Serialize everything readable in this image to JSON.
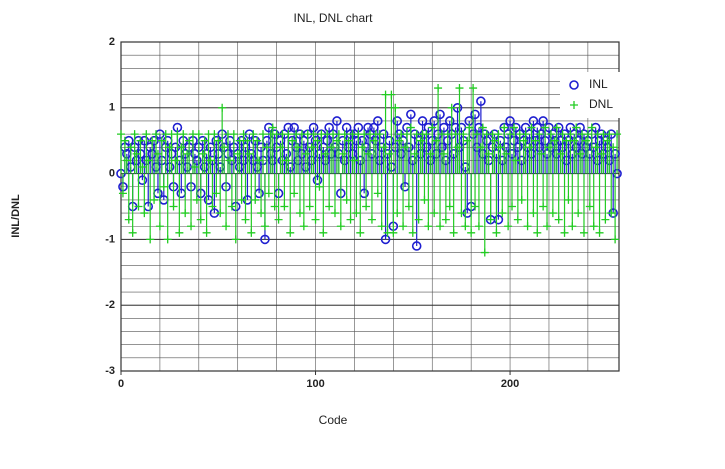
{
  "chart_data": {
    "type": "stem",
    "title": "INL, DNL chart",
    "xlabel": "Code",
    "ylabel": "INL/DNL",
    "xlim": [
      0,
      256
    ],
    "ylim": [
      -3,
      2
    ],
    "xticks": [
      0,
      100,
      200
    ],
    "yticks": [
      -3,
      -2,
      -1,
      0,
      1,
      2
    ],
    "x_grid_step": 20,
    "y_grid_step": 0.2,
    "grid": true,
    "legend": "upper right",
    "x": [
      0,
      1,
      2,
      3,
      4,
      5,
      6,
      7,
      8,
      9,
      10,
      11,
      12,
      13,
      14,
      15,
      16,
      17,
      18,
      19,
      20,
      21,
      22,
      23,
      24,
      25,
      26,
      27,
      28,
      29,
      30,
      31,
      32,
      33,
      34,
      35,
      36,
      37,
      38,
      39,
      40,
      41,
      42,
      43,
      44,
      45,
      46,
      47,
      48,
      49,
      50,
      51,
      52,
      53,
      54,
      55,
      56,
      57,
      58,
      59,
      60,
      61,
      62,
      63,
      64,
      65,
      66,
      67,
      68,
      69,
      70,
      71,
      72,
      73,
      74,
      75,
      76,
      77,
      78,
      79,
      80,
      81,
      82,
      83,
      84,
      85,
      86,
      87,
      88,
      89,
      90,
      91,
      92,
      93,
      94,
      95,
      96,
      97,
      98,
      99,
      100,
      101,
      102,
      103,
      104,
      105,
      106,
      107,
      108,
      109,
      110,
      111,
      112,
      113,
      114,
      115,
      116,
      117,
      118,
      119,
      120,
      121,
      122,
      123,
      124,
      125,
      126,
      127,
      128,
      129,
      130,
      131,
      132,
      133,
      134,
      135,
      136,
      137,
      138,
      139,
      140,
      141,
      142,
      143,
      144,
      145,
      146,
      147,
      148,
      149,
      150,
      151,
      152,
      153,
      154,
      155,
      156,
      157,
      158,
      159,
      160,
      161,
      162,
      163,
      164,
      165,
      166,
      167,
      168,
      169,
      170,
      171,
      172,
      173,
      174,
      175,
      176,
      177,
      178,
      179,
      180,
      181,
      182,
      183,
      184,
      185,
      186,
      187,
      188,
      189,
      190,
      191,
      192,
      193,
      194,
      195,
      196,
      197,
      198,
      199,
      200,
      201,
      202,
      203,
      204,
      205,
      206,
      207,
      208,
      209,
      210,
      211,
      212,
      213,
      214,
      215,
      216,
      217,
      218,
      219,
      220,
      221,
      222,
      223,
      224,
      225,
      226,
      227,
      228,
      229,
      230,
      231,
      232,
      233,
      234,
      235,
      236,
      237,
      238,
      239,
      240,
      241,
      242,
      243,
      244,
      245,
      246,
      247,
      248,
      249,
      250,
      251,
      252,
      253,
      254,
      255
    ],
    "series": [
      {
        "name": "INL",
        "color": "#1f1fd0",
        "marker": "circle",
        "values": [
          0,
          -0.2,
          0.4,
          0.3,
          0.5,
          0.1,
          -0.5,
          0.4,
          0.2,
          0.5,
          0.3,
          -0.1,
          0.5,
          0.2,
          -0.5,
          0.4,
          0.3,
          0.5,
          0.1,
          -0.3,
          0.6,
          0.2,
          -0.4,
          0.4,
          0.5,
          0.1,
          0.3,
          -0.2,
          0.4,
          0.7,
          0.2,
          -0.3,
          0.5,
          0.3,
          0.1,
          0.4,
          -0.2,
          0.5,
          0.3,
          0.2,
          0.4,
          -0.3,
          0.5,
          0.1,
          0.3,
          -0.4,
          0.4,
          0.2,
          -0.6,
          0.5,
          0.3,
          0.1,
          0.6,
          0.4,
          -0.2,
          0.3,
          0.5,
          0.2,
          0.4,
          -0.5,
          0.3,
          0.1,
          0.5,
          0.2,
          0.4,
          -0.4,
          0.6,
          0.3,
          0.2,
          0.5,
          0.1,
          -0.3,
          0.4,
          0.2,
          -1.0,
          0.5,
          0.7,
          0.3,
          0.2,
          0.6,
          0.4,
          -0.3,
          0.5,
          0.2,
          0.6,
          0.3,
          0.7,
          0.1,
          0.5,
          0.7,
          0.4,
          0.2,
          0.6,
          0.3,
          0.5,
          0.1,
          0.6,
          0.4,
          0.2,
          0.7,
          0.5,
          -0.1,
          0.3,
          0.6,
          0.4,
          0.2,
          0.5,
          0.7,
          0.3,
          0.6,
          0.4,
          0.8,
          0.3,
          -0.3,
          0.5,
          0.2,
          0.7,
          0.4,
          0.6,
          0.3,
          0.6,
          0.5,
          0.7,
          0.2,
          0.5,
          -0.3,
          0.4,
          0.7,
          0.6,
          0.3,
          0.7,
          0.5,
          0.8,
          0.2,
          0.4,
          0.6,
          -1.0,
          0.3,
          0.5,
          0.1,
          -0.8,
          0.4,
          0.8,
          0.6,
          0.3,
          0.5,
          -0.2,
          0.7,
          0.4,
          0.9,
          0.2,
          0.6,
          -1.1,
          0.5,
          0.3,
          0.8,
          0.6,
          0.4,
          0.7,
          0.2,
          0.5,
          0.8,
          0.3,
          0.6,
          0.9,
          0.4,
          0.7,
          0.2,
          0.5,
          0.8,
          0.6,
          0.3,
          0.7,
          1.0,
          0.4,
          0.7,
          0.5,
          0.1,
          -0.6,
          0.8,
          -0.5,
          0.6,
          0.9,
          0.4,
          0.7,
          1.1,
          0.3,
          0.6,
          0.5,
          0.2,
          -0.7,
          0.4,
          0.6,
          0.3,
          -0.7,
          0.5,
          0.2,
          0.7,
          0.4,
          0.6,
          0.8,
          0.3,
          0.5,
          0.7,
          0.4,
          0.6,
          0.2,
          0.5,
          0.7,
          0.4,
          0.6,
          0.3,
          0.8,
          0.5,
          0.7,
          0.4,
          0.6,
          0.8,
          0.5,
          0.3,
          0.7,
          0.4,
          0.6,
          0.5,
          0.3,
          0.7,
          0.5,
          0.4,
          0.6,
          0.2,
          0.5,
          0.7,
          0.3,
          0.6,
          0.4,
          0.5,
          0.7,
          0.3,
          0.6,
          0.4,
          0.5,
          0.3,
          0.6,
          0.4,
          0.7,
          0.2,
          0.5,
          0.6,
          0.3,
          0.5,
          0.4,
          0.2,
          0.6,
          -0.6,
          0.3,
          0
        ]
      },
      {
        "name": "DNL",
        "color": "#22cc22",
        "marker": "plus",
        "values": [
          0.6,
          -0.3,
          0.5,
          0.2,
          -0.7,
          0.4,
          -0.9,
          0.6,
          0.3,
          -0.5,
          0.5,
          0.1,
          -0.6,
          0.6,
          0.2,
          -1.0,
          0.5,
          -0.4,
          0.6,
          0.3,
          -0.8,
          0.5,
          -0.2,
          0.6,
          -1.0,
          0.4,
          0.6,
          -0.5,
          0.2,
          0.6,
          -0.9,
          0.4,
          0.6,
          -0.6,
          0.3,
          0.5,
          -0.8,
          0.6,
          0.1,
          -0.4,
          0.6,
          -0.7,
          0.3,
          0.5,
          -0.9,
          0.6,
          0.2,
          -0.5,
          0.6,
          -0.3,
          0.5,
          -0.6,
          1.0,
          0.4,
          -0.8,
          0.6,
          0.2,
          -0.5,
          0.6,
          -1.0,
          0.3,
          0.5,
          -0.4,
          0.6,
          -0.7,
          0.5,
          0.3,
          -0.9,
          0.6,
          -0.4,
          0.5,
          0.2,
          -0.6,
          0.6,
          -0.8,
          0.4,
          -0.3,
          0.6,
          0.7,
          -0.5,
          0.6,
          -0.7,
          0.4,
          0.6,
          -0.5,
          0.2,
          0.6,
          -0.9,
          0.5,
          -0.3,
          0.6,
          0.4,
          -0.6,
          0.6,
          -0.8,
          0.3,
          0.6,
          -0.5,
          0.4,
          0.6,
          -0.7,
          0.5,
          -0.2,
          0.6,
          -0.9,
          0.3,
          0.6,
          -0.5,
          0.4,
          0.6,
          -0.6,
          0.5,
          0.6,
          -0.8,
          0.3,
          0.6,
          -0.4,
          0.5,
          -0.7,
          0.6,
          0.2,
          -0.6,
          0.6,
          -0.9,
          0.4,
          0.6,
          -0.5,
          0.3,
          0.6,
          -0.7,
          0.5,
          0.6,
          -0.3,
          0.6,
          -0.8,
          0.4,
          1.2,
          -0.9,
          0.3,
          1.2,
          -0.9,
          1.0,
          -0.6,
          0.5,
          0.6,
          -0.8,
          0.4,
          0.6,
          -0.5,
          0.7,
          -0.9,
          0.3,
          0.6,
          -0.7,
          0.5,
          0.6,
          -0.4,
          0.6,
          -0.8,
          0.3,
          0.7,
          -0.6,
          0.5,
          1.3,
          -0.8,
          0.6,
          0.3,
          -0.7,
          0.6,
          -0.5,
          1.0,
          -0.9,
          0.6,
          0.4,
          1.3,
          -0.6,
          0.6,
          -0.8,
          0.5,
          0.7,
          -0.9,
          1.3,
          -0.5,
          0.6,
          -0.8,
          0.4,
          0.7,
          -1.2,
          0.6,
          0.3,
          -0.7,
          0.6,
          0.5,
          -0.9,
          0.6,
          0.4,
          -0.6,
          0.7,
          0.3,
          -0.8,
          0.6,
          -0.5,
          0.7,
          0.2,
          -0.7,
          0.6,
          -0.4,
          0.5,
          0.6,
          -0.8,
          0.4,
          0.7,
          -0.6,
          0.5,
          -0.9,
          0.6,
          0.3,
          -0.5,
          0.7,
          -0.8,
          0.4,
          0.6,
          -0.6,
          0.5,
          0.7,
          -0.7,
          0.3,
          0.6,
          -0.9,
          0.5,
          -0.4,
          0.6,
          -0.8,
          0.5,
          0.7,
          -0.6,
          0.3,
          0.6,
          -0.9,
          0.5,
          0.6,
          -0.5,
          0.7,
          -0.8,
          0.4,
          0.6,
          -0.9,
          0.3,
          0.6,
          -0.7,
          0.5,
          0.6,
          -0.6,
          0.4,
          -1.0,
          0.6
        ]
      }
    ]
  }
}
